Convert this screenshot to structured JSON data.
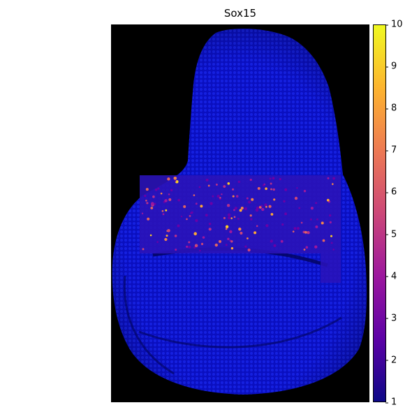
{
  "title": "Sox15",
  "colorbar": {
    "min": 1,
    "max": 10,
    "ticks": [
      "1",
      "2",
      "3",
      "4",
      "5",
      "6",
      "7",
      "8",
      "9",
      "10"
    ],
    "colors": [
      "#0d0887",
      "#5c01a6",
      "#9c179e",
      "#cc4778",
      "#ed7953",
      "#fdb42f",
      "#f0f921"
    ]
  },
  "image": {
    "background": "#000000",
    "tissue_color": "#0a10c8",
    "subject": "tissue section with expression overlay"
  }
}
